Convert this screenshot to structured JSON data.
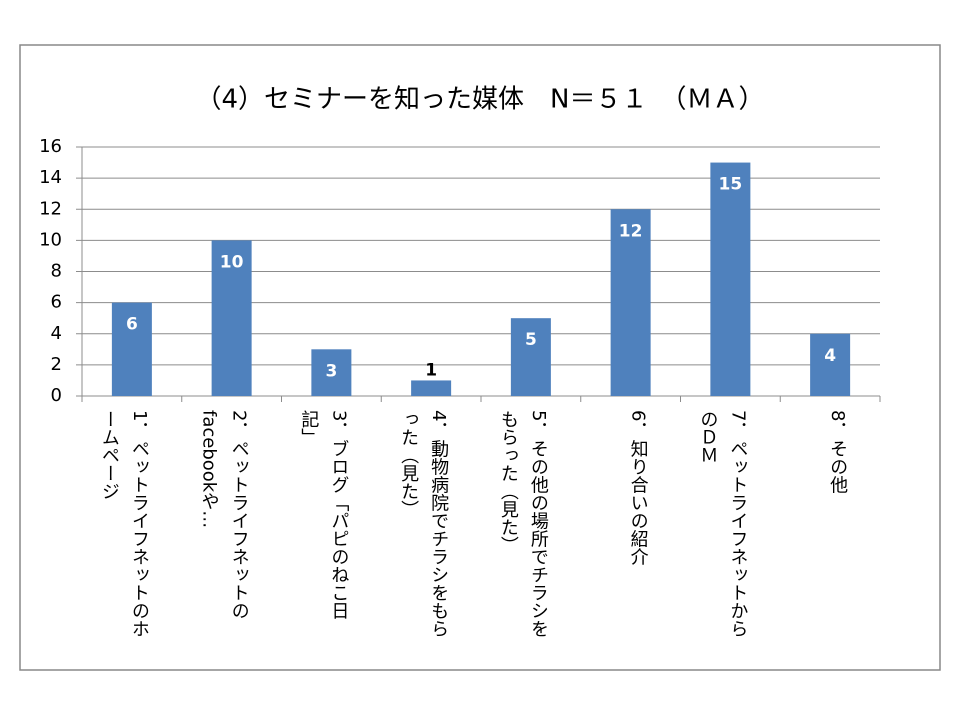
{
  "chart_data": {
    "type": "bar",
    "title": "（4）セミナーを知った媒体　N＝５１　（ＭＡ）",
    "categories": [
      "1．ペットライフネットのホームページ",
      "2．ペットライフネットのfacebookや…",
      "3．ブログ「パピのねこ日記」",
      "4．動物病院でチラシをもらった（見た）",
      "5．その他の場所でチラシをもらった（見た）",
      "6．知り合いの紹介",
      "7．ペットライフネットからのＤＭ",
      "8．その他"
    ],
    "values": [
      6,
      10,
      3,
      1,
      5,
      12,
      15,
      4
    ],
    "color": "#4f81bd",
    "ylim": [
      0,
      16
    ],
    "yticks": [
      0,
      2,
      4,
      6,
      8,
      10,
      12,
      14,
      16
    ],
    "grid": true
  }
}
